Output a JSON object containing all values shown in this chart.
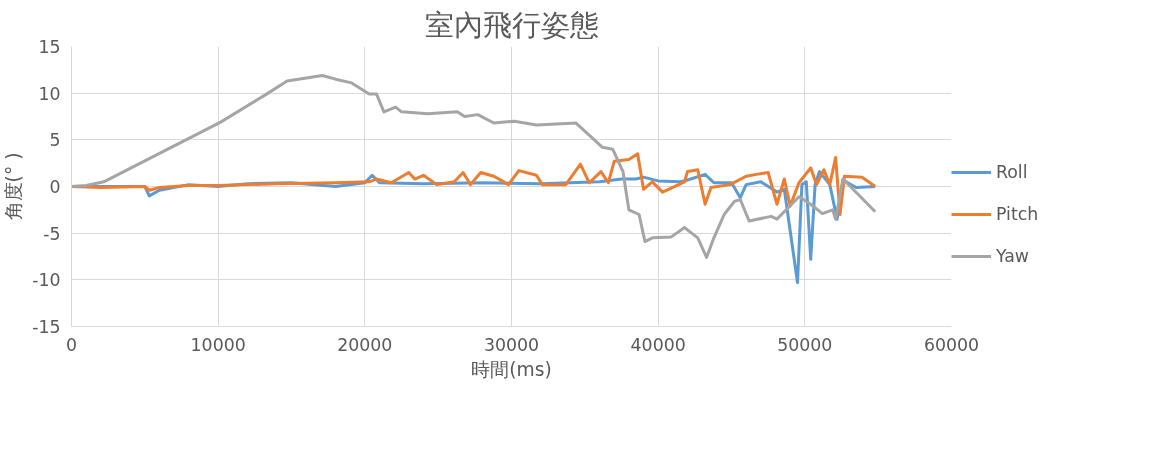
{
  "chart_data": {
    "type": "line",
    "title": "室內飛行姿態",
    "xlabel": "時間(ms)",
    "ylabel": "角度(° )",
    "xlim": [
      0,
      60000
    ],
    "xticks": [
      0,
      10000,
      20000,
      30000,
      40000,
      50000,
      60000
    ],
    "ylim": [
      -15,
      15
    ],
    "yticks": [
      -15,
      -10,
      -5,
      0,
      5,
      10,
      15
    ],
    "grid": true,
    "legend": "right",
    "line_style": "solid",
    "marker": "none",
    "series": [
      {
        "name": "Roll",
        "color": "#5b9bd5",
        "x": [
          0,
          2000,
          5000,
          5300,
          6000,
          8000,
          10000,
          12000,
          15000,
          18000,
          20000,
          20500,
          21000,
          24000,
          28000,
          32000,
          36000,
          37500,
          38500,
          39000,
          40000,
          41500,
          42000,
          43200,
          43800,
          45000,
          45600,
          46000,
          47000,
          48100,
          48600,
          49500,
          49800,
          50100,
          50400,
          50700,
          51000,
          51700,
          52200,
          52600,
          53500,
          54800
        ],
        "values": [
          0,
          0,
          0,
          -1.0,
          -0.4,
          0.2,
          0,
          0.3,
          0.4,
          null,
          0.4,
          1.2,
          0.4,
          0.3,
          0.4,
          0.3,
          0.5,
          0.8,
          0.8,
          1.0,
          0.6,
          0.5,
          0.7,
          1.3,
          0.4,
          0.4,
          -1.2,
          0.2,
          0.5,
          -0.6,
          -0.3,
          -10.3,
          0.2,
          0.5,
          -7.8,
          0.2,
          1.6,
          0.2,
          -3.5,
          0.7,
          -0.1,
          0
        ]
      },
      {
        "name": "Pitch",
        "color": "#ed7d31",
        "x": [
          0,
          2000,
          5000,
          5300,
          6000,
          8000,
          10000,
          14000,
          18000,
          20300,
          20800,
          21800,
          23000,
          23400,
          24000,
          24900,
          26100,
          26700,
          27200,
          27900,
          28800,
          29800,
          30500,
          31700,
          32100,
          33700,
          34700,
          35300,
          36100,
          36600,
          37000,
          38000,
          38600,
          39000,
          39600,
          40300,
          41800,
          42000,
          42700,
          43200,
          43600,
          44900,
          46000,
          46700,
          47500,
          48100,
          48600,
          49000,
          49600,
          50400,
          50800,
          51300,
          51700,
          52100,
          52400,
          52700,
          53900,
          54800
        ],
        "values": [
          0,
          -0.1,
          0,
          -0.4,
          -0.1,
          0.1,
          0.1,
          0.3,
          0.4,
          0.5,
          0.8,
          0.4,
          1.5,
          0.8,
          1.2,
          0.2,
          0.5,
          1.5,
          0.2,
          1.5,
          1.1,
          0.2,
          1.7,
          1.2,
          0.2,
          0.2,
          2.4,
          0.4,
          1.6,
          0.4,
          2.7,
          2.9,
          3.5,
          -0.3,
          0.5,
          -0.6,
          0.5,
          1.6,
          1.8,
          -1.9,
          -0.1,
          0.2,
          1.1,
          1.3,
          1.5,
          -1.9,
          0.8,
          -2.1,
          0.4,
          2.0,
          0.2,
          1.8,
          0.2,
          3.1,
          -3.0,
          1.1,
          1.0,
          0
        ]
      },
      {
        "name": "Yaw",
        "color": "#a5a5a5",
        "x": [
          0,
          1000,
          2200,
          10170,
          13300,
          14700,
          17100,
          18000,
          19100,
          20300,
          20800,
          21300,
          22100,
          22500,
          24300,
          26300,
          26800,
          27700,
          28800,
          30200,
          31700,
          34400,
          35500,
          36200,
          36900,
          37600,
          38000,
          38700,
          39100,
          39600,
          40900,
          41800,
          42700,
          43300,
          43800,
          44500,
          45200,
          45600,
          46200,
          47700,
          48100,
          49600,
          50400,
          51200,
          51900,
          52100,
          52600,
          54800
        ],
        "values": [
          0,
          0.1,
          0.5,
          6.9,
          9.9,
          11.3,
          11.9,
          11.5,
          11.1,
          9.9,
          9.9,
          8.0,
          8.5,
          8.0,
          7.8,
          8.0,
          7.5,
          7.7,
          6.8,
          7.0,
          6.6,
          6.8,
          5.2,
          4.2,
          4.0,
          1.6,
          -2.5,
          -3.0,
          -5.9,
          -5.5,
          -5.4,
          -4.4,
          -5.5,
          -7.6,
          -5.5,
          -3.0,
          -1.6,
          -1.4,
          -3.7,
          -3.2,
          -3.5,
          -1.1,
          -1.9,
          -2.9,
          -2.5,
          -3.5,
          0.8,
          -2.7
        ]
      }
    ]
  }
}
